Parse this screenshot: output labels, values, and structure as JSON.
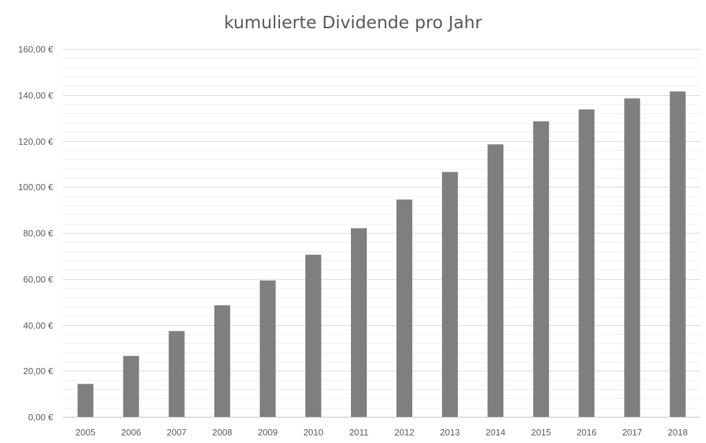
{
  "chart_data": {
    "type": "bar",
    "title": "kumulierte Dividende pro Jahr",
    "xlabel": "",
    "ylabel": "",
    "categories": [
      "2005",
      "2006",
      "2007",
      "2008",
      "2009",
      "2010",
      "2011",
      "2012",
      "2013",
      "2014",
      "2015",
      "2016",
      "2017",
      "2018"
    ],
    "values": [
      14.3,
      26.5,
      37.3,
      48.5,
      59.3,
      70.5,
      82.0,
      94.5,
      106.5,
      118.5,
      128.5,
      133.7,
      138.5,
      141.5
    ],
    "ylim": [
      0,
      160
    ],
    "y_major_step": 20,
    "y_minor_step": 4,
    "y_tick_labels": [
      "0,00 €",
      "20,00 €",
      "40,00 €",
      "60,00 €",
      "80,00 €",
      "100,00 €",
      "120,00 €",
      "140,00 €",
      "160,00 €"
    ],
    "grid": true,
    "legend": "none",
    "bar_color": "#7f7f7f",
    "gridline_color": "#d9d9d9",
    "minor_gridline_color": "#efefef"
  }
}
